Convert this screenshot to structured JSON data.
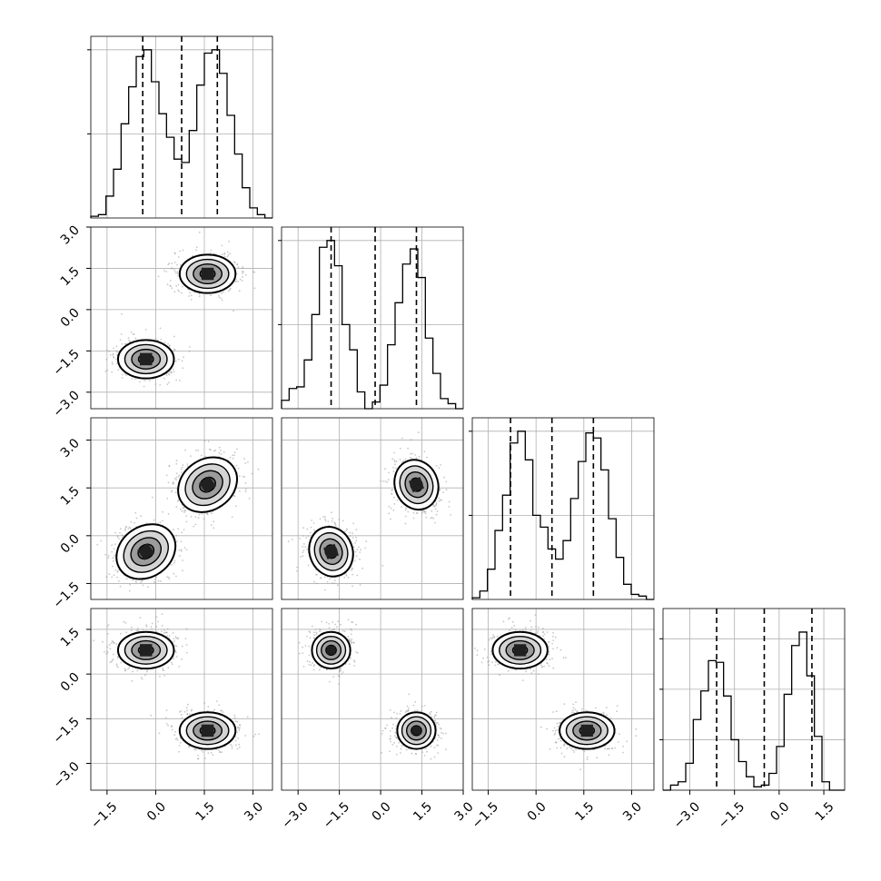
{
  "chart_data": {
    "type": "corner",
    "n_dims": 4,
    "hist": [
      {
        "dim": 0,
        "bins": [
          -2.0,
          3.6
        ],
        "values": [
          0.01,
          0.02,
          0.13,
          0.29,
          0.56,
          0.78,
          0.96,
          1.0,
          0.81,
          0.62,
          0.48,
          0.35,
          0.33,
          0.52,
          0.79,
          0.98,
          1.0,
          0.86,
          0.61,
          0.38,
          0.18,
          0.06,
          0.02,
          0.0
        ],
        "quantiles": [
          -0.4,
          0.8,
          1.9
        ],
        "grid_fracs": [
          0.5,
          1.0
        ],
        "xlim": [
          -2.0,
          3.6
        ]
      },
      {
        "dim": 1,
        "bins": [
          -3.6,
          3.0
        ],
        "values": [
          0.05,
          0.12,
          0.13,
          0.29,
          0.56,
          0.96,
          1.0,
          0.85,
          0.5,
          0.35,
          0.1,
          0.0,
          0.04,
          0.14,
          0.38,
          0.63,
          0.86,
          0.95,
          0.78,
          0.42,
          0.21,
          0.06,
          0.03,
          0.0
        ],
        "quantiles": [
          -1.8,
          -0.2,
          1.3
        ],
        "grid_fracs": [
          0.5,
          1.0
        ],
        "xlim": [
          -3.6,
          3.0
        ]
      },
      {
        "dim": 2,
        "bins": [
          -2.0,
          3.7
        ],
        "values": [
          0.01,
          0.05,
          0.18,
          0.41,
          0.62,
          0.93,
          1.0,
          0.83,
          0.5,
          0.43,
          0.3,
          0.24,
          0.35,
          0.6,
          0.82,
          0.99,
          0.96,
          0.77,
          0.48,
          0.25,
          0.09,
          0.03,
          0.02,
          0.0
        ],
        "quantiles": [
          -0.8,
          0.5,
          1.8
        ],
        "grid_fracs": [
          0.5,
          1.0
        ],
        "xlim": [
          -2.0,
          3.7
        ]
      },
      {
        "dim": 3,
        "bins": [
          -3.9,
          2.2
        ],
        "values": [
          0.0,
          0.03,
          0.05,
          0.16,
          0.42,
          0.59,
          0.77,
          0.76,
          0.56,
          0.3,
          0.17,
          0.08,
          0.02,
          0.03,
          0.1,
          0.26,
          0.57,
          0.86,
          0.94,
          0.68,
          0.32,
          0.05,
          0.0,
          0.0
        ],
        "quantiles": [
          -2.1,
          -0.5,
          1.1
        ],
        "grid_fracs": [
          0.3,
          0.6,
          0.9
        ],
        "xlim": [
          -3.9,
          2.2
        ]
      }
    ],
    "lims": [
      [
        -2.0,
        3.6
      ],
      [
        -3.6,
        3.0
      ],
      [
        -2.0,
        3.7
      ],
      [
        -3.9,
        2.2
      ]
    ],
    "clusters": [
      {
        "center": [
          -0.3,
          -1.8,
          -0.5,
          0.8
        ],
        "sd": [
          0.42,
          0.34,
          0.42,
          0.3
        ]
      },
      {
        "center": [
          1.6,
          1.3,
          1.6,
          -1.9
        ],
        "sd": [
          0.42,
          0.34,
          0.42,
          0.3
        ]
      }
    ],
    "panel_ticks": [
      [
        -1.5,
        0.0,
        1.5,
        3.0
      ],
      [
        -3.0,
        -1.5,
        0.0,
        1.5,
        3.0
      ],
      [
        -1.5,
        0.0,
        1.5,
        3.0
      ],
      [
        -3.0,
        -1.5,
        0.0,
        1.5
      ]
    ],
    "bottom_tick_labels": [
      [
        "−1.5",
        "0.0",
        "1.5",
        "3.0"
      ],
      [
        "−3.0",
        "−1.5",
        "0.0",
        "1.5",
        "3.0"
      ],
      [
        "−1.5",
        "0.0",
        "1.5",
        "3.0"
      ],
      [
        "−3.0",
        "−1.5",
        "0.0",
        "1.5"
      ]
    ],
    "left_tick_labels": [
      [],
      [
        "−3.0",
        "−1.5",
        "0.0",
        "1.5",
        "3.0"
      ],
      [
        "−1.5",
        "0.0",
        "1.5",
        "3.0"
      ],
      [
        "−3.0",
        "−1.5",
        "0.0",
        "1.5"
      ]
    ],
    "colors": {
      "line": "#000000",
      "grid": "#b0b0b0",
      "points": "#9a9a9a",
      "background": "#ffffff"
    }
  }
}
